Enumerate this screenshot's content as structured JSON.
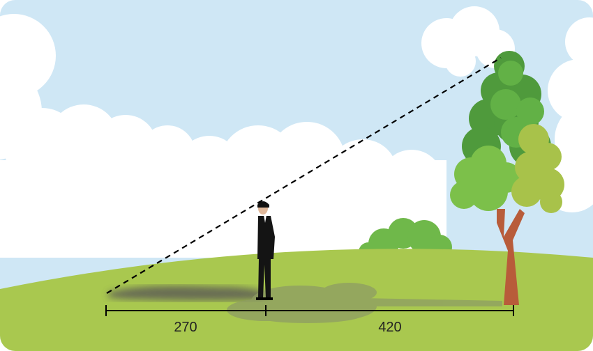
{
  "colors": {
    "sky": "#cfe7f5",
    "cloud": "#ffffff",
    "grass": "#a9c84f",
    "grass_dark": "#93b43f",
    "shadow": "#7a7a6a",
    "tree_trunk": "#b85c3a",
    "tree_dark": "#4f9a3c",
    "tree_light": "#7cc04a",
    "tree_yellow": "#a8c24a",
    "person_suit": "#141414",
    "line": "#000000"
  },
  "measurements": {
    "shadow_length_label": "270",
    "distance_label": "420"
  },
  "icons": [
    "person-figure",
    "tree-figure",
    "bush-figure",
    "cloud-shape"
  ]
}
